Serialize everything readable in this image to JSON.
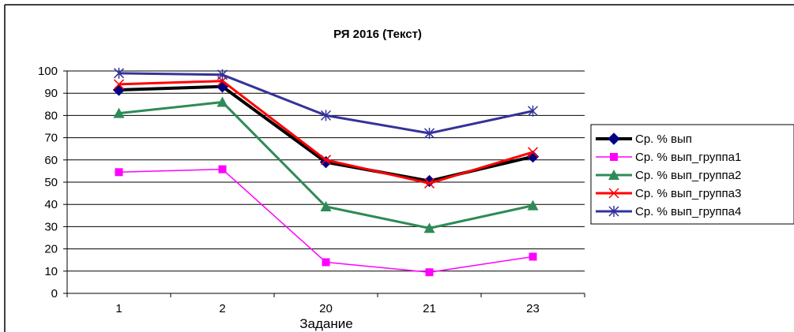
{
  "chart_data": {
    "type": "line",
    "title": "РЯ 2016 (Текст)",
    "xlabel": "Задание",
    "ylabel": "",
    "ylim": [
      0,
      100
    ],
    "ytick_step": 10,
    "grid": true,
    "legend_position": "right",
    "categories": [
      "1",
      "2",
      "20",
      "21",
      "23"
    ],
    "series": [
      {
        "name": "Ср. % вып",
        "values": [
          91.5,
          93,
          59,
          50.5,
          61.5
        ],
        "color": "#000000",
        "marker": "diamond",
        "width": 4
      },
      {
        "name": "Ср. % вып_группа1",
        "values": [
          54.5,
          55.8,
          14,
          9.5,
          16.5
        ],
        "color": "#ff00ff",
        "marker": "square",
        "width": 1.5
      },
      {
        "name": "Ср. % вып_группа2",
        "values": [
          81,
          86,
          39,
          29.3,
          39.5
        ],
        "color": "#2e8b57",
        "marker": "triangle",
        "width": 3
      },
      {
        "name": "Ср. % вып_группа3",
        "values": [
          94,
          95.5,
          60,
          49.5,
          63.5
        ],
        "color": "#ff0000",
        "marker": "x",
        "width": 3
      },
      {
        "name": "Ср. % вып_группа4",
        "values": [
          99,
          98.3,
          80,
          72,
          82
        ],
        "color": "#333399",
        "marker": "star",
        "width": 3
      }
    ]
  }
}
